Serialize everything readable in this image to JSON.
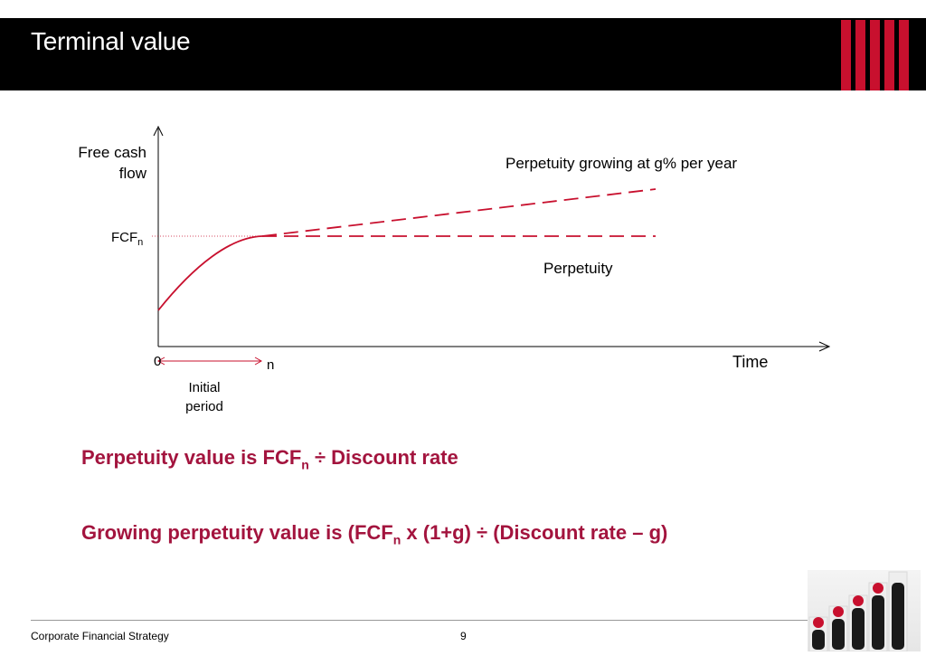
{
  "header": {
    "title": "Terminal value",
    "accent_color": "#c8102e"
  },
  "diagram": {
    "y_axis_label_line1": "Free cash",
    "y_axis_label_line2": "flow",
    "x_axis_label": "Time",
    "fcf_label_main": "FCF",
    "fcf_label_sub": "n",
    "origin_label": "0",
    "n_label": "n",
    "initial_period_line1": "Initial",
    "initial_period_line2": "period",
    "growing_label": "Perpetuity growing at g% per year",
    "flat_label": "Perpetuity",
    "curve_color": "#c8102e"
  },
  "statements": {
    "perpetuity_prefix": "Perpetuity value is FCF",
    "perpetuity_sub": "n",
    "perpetuity_suffix": " ÷ Discount rate",
    "growing_prefix": "Growing perpetuity value is (FCF",
    "growing_sub": "n",
    "growing_suffix": " x (1+g) ÷ (Discount rate – g)",
    "text_color": "#a3143e"
  },
  "footer": {
    "course": "Corporate Financial Strategy",
    "page_number": "9"
  },
  "decor": {
    "photo_icon": "stacked-beads-photo"
  }
}
